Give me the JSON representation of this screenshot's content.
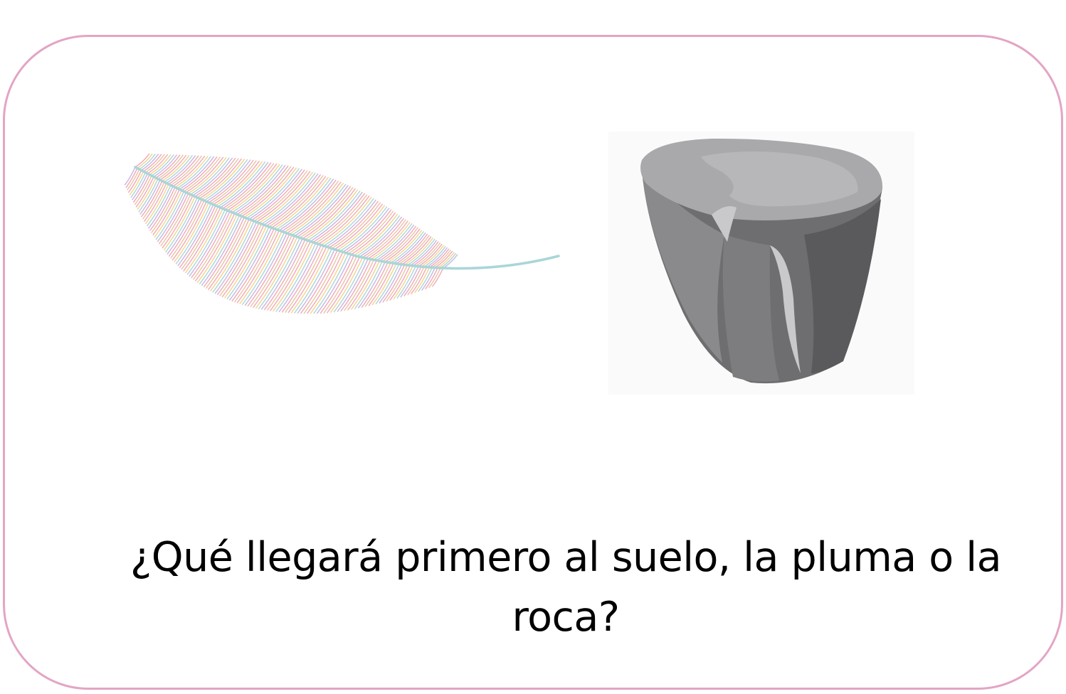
{
  "card": {
    "border_color": "#e3a5c4"
  },
  "images": {
    "feather": "feather-icon",
    "rock": "rock-icon"
  },
  "question": {
    "text": "¿Qué llegará primero al suelo, la pluma o la roca?"
  }
}
